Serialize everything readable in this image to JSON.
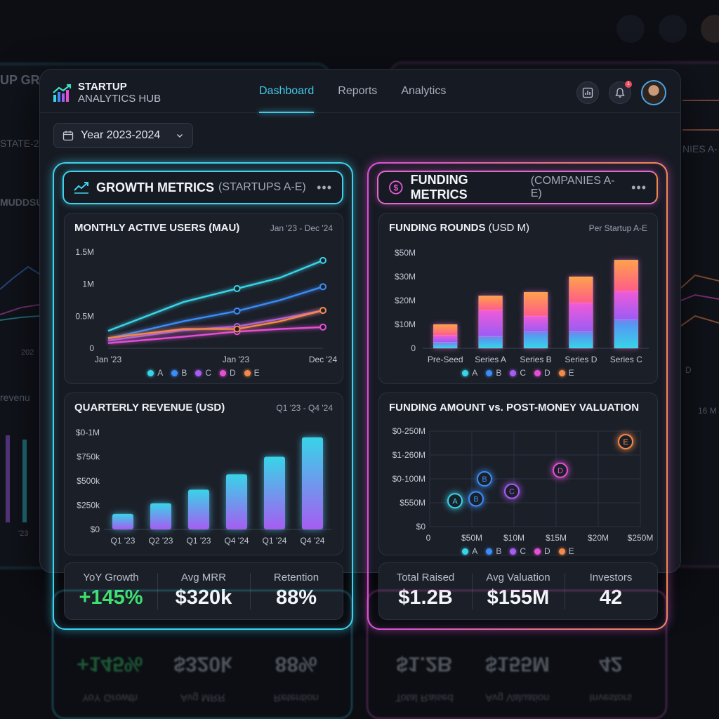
{
  "background": {
    "left_title": "UP GRO",
    "left_sub": "STATE-2",
    "left_label": "MUDDSU",
    "left_revenue": "revenu",
    "left_tick_1": "202",
    "left_tick_2": "'23",
    "right_sub": "NIES A-",
    "right_tick": "D",
    "right_value": "16 M"
  },
  "app": {
    "title_line1": "STARTUP",
    "title_line2": "ANALYTICS HUB",
    "nav": [
      "Dashboard",
      "Reports",
      "Analytics"
    ],
    "active_nav": "Dashboard",
    "notification_count": "1",
    "year_filter": "Year 2023-2024"
  },
  "growth": {
    "title": "GROWTH METRICS",
    "subtitle": "(STARTUPS A-E)",
    "menu": "•••",
    "mau": {
      "title": "MONTHLY ACTIVE USERS (MAU)",
      "range": "Jan '23 - Dec '24"
    },
    "revenue": {
      "title": "QUARTERLY REVENUE (USD)",
      "range": "Q1 '23 - Q4 '24"
    },
    "stats": [
      {
        "label": "YoY Growth",
        "value": "+145%"
      },
      {
        "label": "Avg MRR",
        "value": "$320k"
      },
      {
        "label": "Retention",
        "value": "88%"
      }
    ]
  },
  "funding": {
    "title": "FUNDING METRICS",
    "subtitle": "(COMPANIES A-E)",
    "menu": "•••",
    "rounds": {
      "title": "FUNDING ROUNDS",
      "title_unit": "(USD M)",
      "range": "Per Startup A-E"
    },
    "scatter": {
      "title": "FUNDING AMOUNT vs. POST-MONEY VALUATION"
    },
    "stats": [
      {
        "label": "Total Raised",
        "value": "$1.2B"
      },
      {
        "label": "Avg Valuation",
        "value": "$155M"
      },
      {
        "label": "Investors",
        "value": "42"
      }
    ]
  },
  "colors": {
    "A": "#38d4e8",
    "B": "#3b8cf5",
    "C": "#a65cf2",
    "D": "#e54fd6",
    "E": "#f5894a"
  },
  "chart_data": [
    {
      "type": "line",
      "title": "MONTHLY ACTIVE USERS (MAU)",
      "x": [
        "Jan '23",
        "Jan '23",
        "Dec '24"
      ],
      "yticks": [
        "0",
        "0.5M",
        "1M",
        "1.5M"
      ],
      "ylim": [
        0,
        1.5
      ],
      "series": [
        {
          "name": "A",
          "points": [
            [
              0,
              0.27
            ],
            [
              0.35,
              0.72
            ],
            [
              0.6,
              0.93
            ],
            [
              0.8,
              1.1
            ],
            [
              1,
              1.37
            ]
          ]
        },
        {
          "name": "B",
          "points": [
            [
              0,
              0.15
            ],
            [
              0.35,
              0.42
            ],
            [
              0.6,
              0.58
            ],
            [
              0.8,
              0.75
            ],
            [
              1,
              0.96
            ]
          ]
        },
        {
          "name": "C",
          "points": [
            [
              0,
              0.12
            ],
            [
              0.35,
              0.28
            ],
            [
              0.6,
              0.34
            ],
            [
              0.8,
              0.46
            ],
            [
              1,
              0.59
            ]
          ]
        },
        {
          "name": "D",
          "points": [
            [
              0,
              0.08
            ],
            [
              0.35,
              0.18
            ],
            [
              0.6,
              0.26
            ],
            [
              0.8,
              0.3
            ],
            [
              1,
              0.33
            ]
          ]
        },
        {
          "name": "E",
          "points": [
            [
              0,
              0.16
            ],
            [
              0.35,
              0.3
            ],
            [
              0.6,
              0.3
            ],
            [
              0.8,
              0.42
            ],
            [
              1,
              0.59
            ]
          ]
        }
      ],
      "legend": [
        "A",
        "B",
        "C",
        "D",
        "E"
      ]
    },
    {
      "type": "bar",
      "title": "QUARTERLY REVENUE (USD)",
      "categories": [
        "Q1 '23",
        "Q2 '23",
        "Q1 '23",
        "Q4 '24",
        "Q1 '24",
        "Q4 '24"
      ],
      "yticks": [
        "$0",
        "$250k",
        "$500k",
        "$750k",
        "$0-1M"
      ],
      "ylim": [
        0,
        1000
      ],
      "values": [
        160,
        270,
        410,
        570,
        750,
        950
      ]
    },
    {
      "type": "bar",
      "title": "FUNDING ROUNDS (USD M)",
      "categories": [
        "Pre-Seed",
        "Series A",
        "Series B",
        "Series D",
        "Series C"
      ],
      "yticks": [
        "0",
        "$10M",
        "$20M",
        "$30M",
        "$50M"
      ],
      "ylim": [
        0,
        40
      ],
      "stacked": true,
      "series": [
        {
          "name": "A",
          "values": [
            2.5,
            5,
            7,
            7,
            12
          ]
        },
        {
          "name": "B",
          "values": [
            3,
            11,
            6.5,
            12,
            12
          ]
        },
        {
          "name": "C",
          "values": [
            4.5,
            6,
            10,
            11,
            13
          ]
        }
      ],
      "legend": [
        "A",
        "B",
        "C",
        "D",
        "E"
      ]
    },
    {
      "type": "scatter",
      "title": "FUNDING AMOUNT vs. POST-MONEY VALUATION",
      "xticks": [
        "0",
        "$50M",
        "$10M",
        "$15M",
        "$20M",
        "$250M"
      ],
      "yticks": [
        "$0",
        "$550M",
        "$0-100M",
        "$1-260M",
        "$0-250M"
      ],
      "points": [
        {
          "name": "A",
          "x": 0.12,
          "y": 0.27
        },
        {
          "name": "B",
          "x": 0.22,
          "y": 0.29
        },
        {
          "name": "C",
          "x": 0.39,
          "y": 0.37
        },
        {
          "name": "D",
          "x": 0.62,
          "y": 0.59
        },
        {
          "name": "E",
          "x": 0.93,
          "y": 0.89
        },
        {
          "name": "B",
          "x": 0.26,
          "y": 0.5
        }
      ],
      "legend": [
        "A",
        "B",
        "C",
        "D",
        "E"
      ]
    }
  ]
}
